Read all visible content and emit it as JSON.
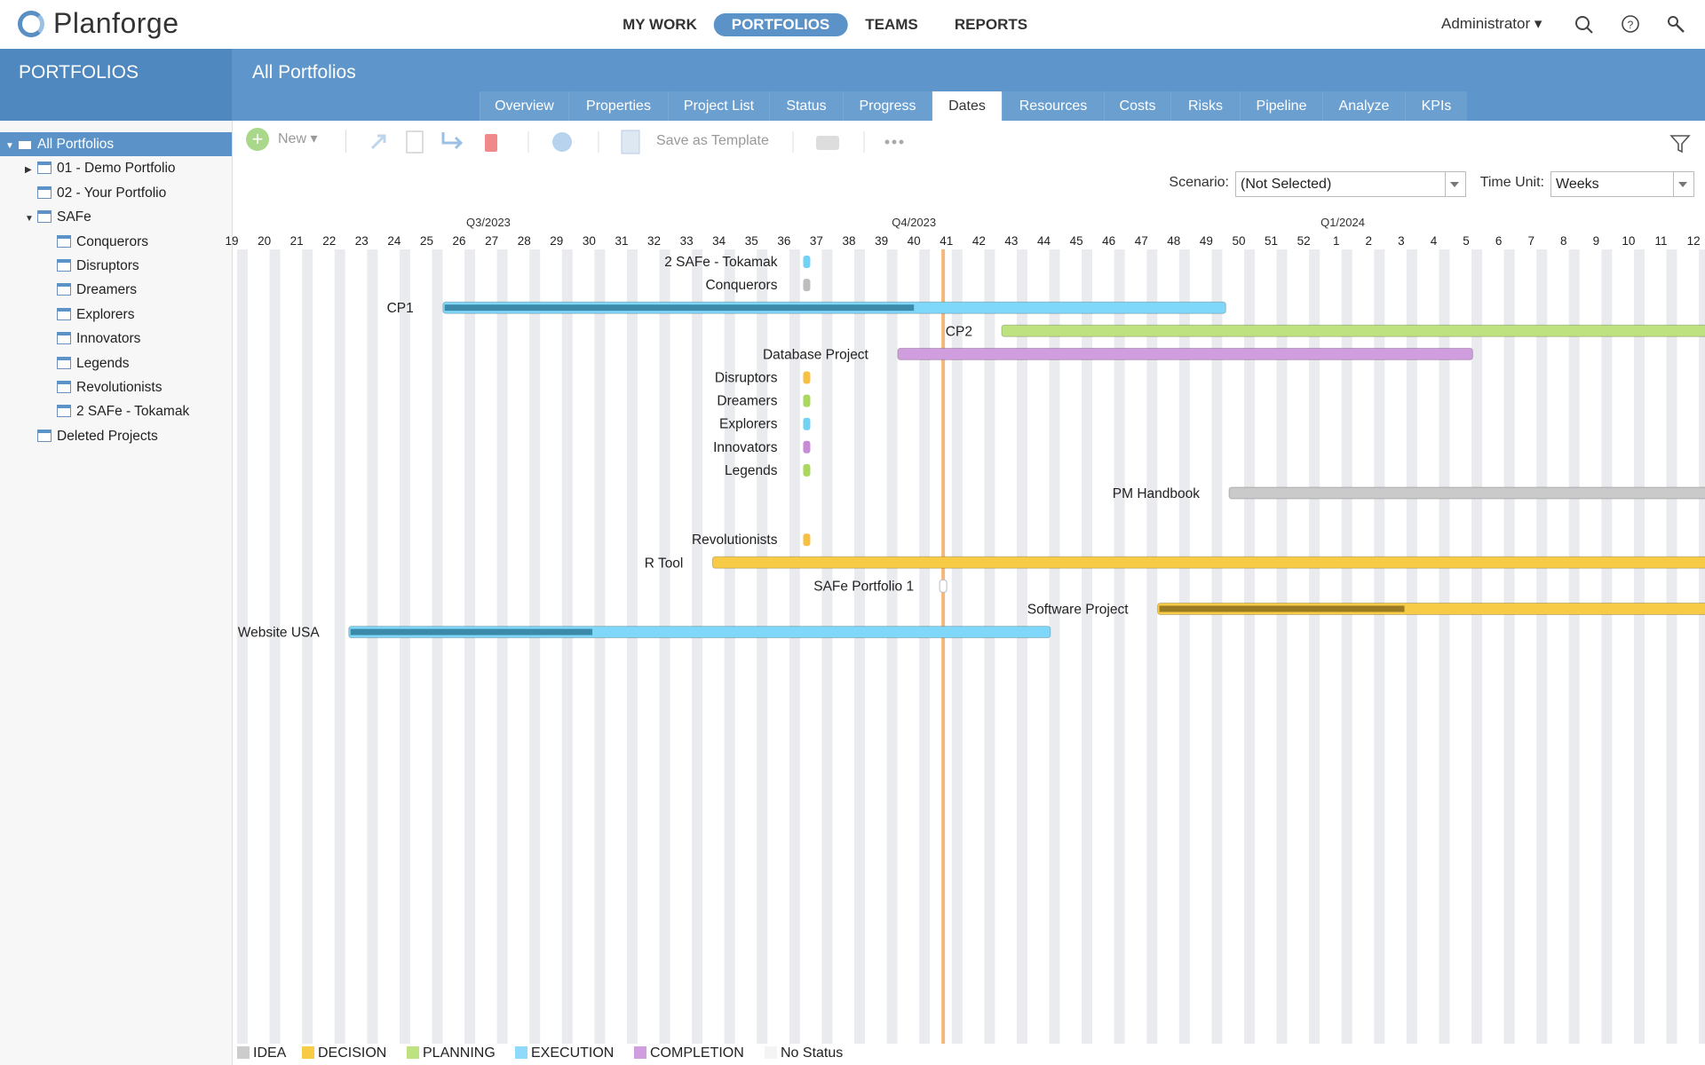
{
  "app": {
    "name": "Planforge",
    "user": "Administrator"
  },
  "nav": {
    "items": [
      "MY WORK",
      "PORTFOLIOS",
      "TEAMS",
      "REPORTS"
    ],
    "active_index": 1
  },
  "header": {
    "section": "PORTFOLIOS",
    "title": "All Portfolios"
  },
  "tabs": {
    "items": [
      "Overview",
      "Properties",
      "Project List",
      "Status",
      "Progress",
      "Dates",
      "Resources",
      "Costs",
      "Risks",
      "Pipeline",
      "Analyze",
      "KPIs"
    ],
    "active_index": 5
  },
  "sidebar": {
    "tree": [
      {
        "label": "All Portfolios",
        "children": [
          {
            "label": "01 - Demo Portfolio",
            "children": []
          },
          {
            "label": "02 - Your Portfolio",
            "children": []
          },
          {
            "label": "SAFe",
            "children": [
              {
                "label": "Conquerors"
              },
              {
                "label": "Disruptors"
              },
              {
                "label": "Dreamers"
              },
              {
                "label": "Explorers"
              },
              {
                "label": "Innovators"
              },
              {
                "label": "Legends"
              },
              {
                "label": "Revolutionists"
              },
              {
                "label": "2 SAFe - Tokamak"
              }
            ]
          },
          {
            "label": "Deleted Projects"
          }
        ]
      }
    ]
  },
  "toolbar": {
    "new": "New",
    "save_template": "Save as Template",
    "scenario_label": "Scenario:",
    "scenario_value": "(Not Selected)",
    "time_unit_label": "Time Unit:",
    "time_unit_value": "Weeks"
  },
  "timeline": {
    "quarters": [
      "Q3/2023",
      "Q4/2023",
      "Q1/2024"
    ],
    "weeks": [
      "19",
      "20",
      "21",
      "22",
      "23",
      "24",
      "25",
      "26",
      "27",
      "28",
      "29",
      "30",
      "31",
      "32",
      "33",
      "34",
      "35",
      "36",
      "37",
      "38",
      "39",
      "40",
      "41",
      "42",
      "43",
      "44",
      "45",
      "46",
      "47",
      "48",
      "49",
      "50",
      "51",
      "52",
      "1",
      "2",
      "3",
      "4",
      "5",
      "6",
      "7",
      "8",
      "9",
      "10",
      "11",
      "12"
    ],
    "today": 21.9,
    "rows": [
      {
        "label": "2 SAFe - Tokamak",
        "date": 17.7,
        "color": "#72d2f5"
      },
      {
        "label": "Conquerors",
        "date": 17.7,
        "color": "#bdbdbd"
      },
      {
        "label": "CP1",
        "start": 6.5,
        "end": 30.6,
        "progress": 21.0,
        "color": "#7fd8fa",
        "progress_color": "#3b8aaa"
      },
      {
        "label": "CP2",
        "start": 23.7,
        "end": null,
        "color": "#bde27f"
      },
      {
        "label": "Database Project",
        "start": 20.5,
        "end": 38.2,
        "color": "#d09ddf"
      },
      {
        "label": "Disruptors",
        "date": 17.7,
        "color": "#f7c042"
      },
      {
        "label": "Dreamers",
        "date": 17.7,
        "color": "#a9d85c"
      },
      {
        "label": "Explorers",
        "date": 17.7,
        "color": "#72d2f5"
      },
      {
        "label": "Innovators",
        "date": 17.7,
        "color": "#c98ad8"
      },
      {
        "label": "Legends",
        "date": 17.7,
        "color": "#a9d85c"
      },
      {
        "label": "PM Handbook",
        "start": 30.7,
        "end": null,
        "color": "#cacaca"
      },
      {
        "label": "Revolutionists",
        "date": 17.7,
        "color": "#f7c042"
      },
      {
        "label": "R Tool",
        "start": 14.8,
        "end": null,
        "color": "#f8cb46"
      },
      {
        "label": "SAFe Portfolio 1",
        "date": 21.9,
        "color": "#ffffff"
      },
      {
        "label": "Software Project",
        "start": 28.5,
        "end": null,
        "progress": 36.1,
        "color": "#f8cb46",
        "progress_color": "#9a7a22"
      },
      {
        "label": "Website USA",
        "start": 3.6,
        "end": 25.2,
        "progress": 11.1,
        "color": "#7fd8fa",
        "progress_color": "#3b8aaa"
      }
    ]
  },
  "legend": [
    {
      "label": "IDEA",
      "color": "#cccccc"
    },
    {
      "label": "DECISION",
      "color": "#f8cb46"
    },
    {
      "label": "PLANNING",
      "color": "#bde27f"
    },
    {
      "label": "EXECUTION",
      "color": "#8fdafa"
    },
    {
      "label": "COMPLETION",
      "color": "#d09ddf"
    },
    {
      "label": "No Status",
      "color": "#f4f4f4"
    }
  ]
}
